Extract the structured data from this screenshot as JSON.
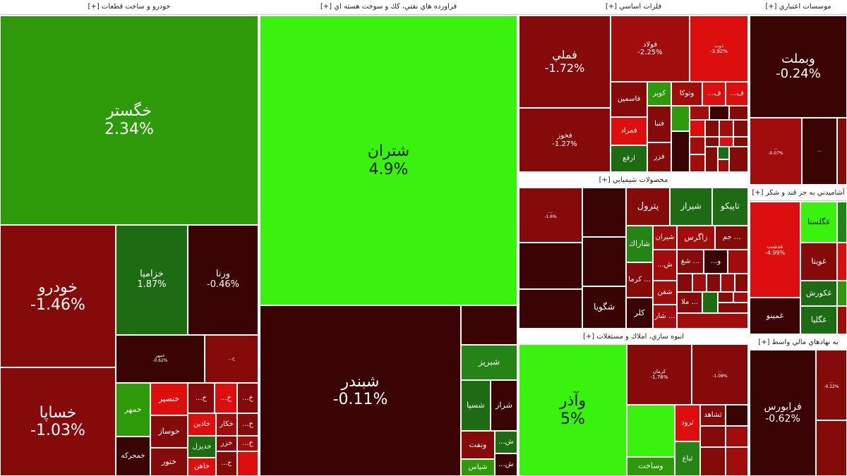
{
  "sectors": {
    "auto": "خودرو و ساخت قطعات [+]",
    "refinery": "فراورده هاي نفتي، كك و سوخت هسته اي [+]",
    "metals": "فلزات اساسي [+]",
    "credit": "موسسات اعتباري [+]",
    "chemical": "محصولات شيميايي [+]",
    "food": "آشاميدني به جز قند و شكر [+]",
    "construction": "انبوه سازي، املاك و مستغلات [+]",
    "financial": "به نهادهاي مالي واسط [+]"
  },
  "colors": {
    "dark_maroon": "#3a0404",
    "dark_red": "#850a0a",
    "red": "#a10c0c",
    "bright_red": "#dd0e0e",
    "green": "#2e9a0a",
    "light_green": "#39f20d",
    "forest_green": "#1d6b13"
  },
  "tiles": {
    "khegostar": {
      "name": "خگستر",
      "pct": "2.34%"
    },
    "khodro": {
      "name": "خودرو",
      "pct": "-1.46%"
    },
    "khsapa": {
      "name": "خساپا",
      "pct": "-1.03%"
    },
    "khzamia": {
      "name": "خزاميا",
      "pct": "1.87%"
    },
    "verna": {
      "name": "ورنا",
      "pct": "-0.46%"
    },
    "kh_small1": {
      "name": "خمهر",
      "pct": "-0.62%"
    },
    "khomehr": {
      "name": "خمهر"
    },
    "khmehrkeh": {
      "name": "خمحركه"
    },
    "khensir": {
      "name": "خنصير"
    },
    "khosaz": {
      "name": "خوساز"
    },
    "khtur": {
      "name": "ختور"
    },
    "khzayan": {
      "name": "خاذين"
    },
    "khdizel": {
      "name": "خديزل"
    },
    "khahn": {
      "name": "خاهن"
    },
    "khkar": {
      "name": "خكار"
    },
    "khzar": {
      "name": "خزر"
    },
    "kh1": {
      "name": "...خ"
    },
    "kh2": {
      "name": "...خ"
    },
    "kh3": {
      "name": "...خ"
    },
    "kh4": {
      "name": "...خ"
    },
    "kh5": {
      "name": "...خ"
    },
    "kh6": {
      "name": "...خ"
    },
    "shetran": {
      "name": "شتران",
      "pct": "4.9%"
    },
    "shebandar": {
      "name": "شبندر",
      "pct": "-0.11%"
    },
    "shebriz": {
      "name": "شبريز"
    },
    "shesepa": {
      "name": "شسپا"
    },
    "sheraz": {
      "name": "شراز"
    },
    "shenaft": {
      "name": "ونفت"
    },
    "shepas": {
      "name": "شپاس"
    },
    "shesh1": {
      "name": "...ش"
    },
    "shesh2": {
      "name": "...ش"
    },
    "fameli": {
      "name": "فملي",
      "pct": "-1.72%"
    },
    "fekhuz": {
      "name": "فخوز",
      "pct": "-1.27%"
    },
    "fulad": {
      "name": "فولاد",
      "pct": "-2.25%"
    },
    "fenavar": {
      "name": "ذوب",
      "pct": "-3.92%"
    },
    "vetuka": {
      "name": "وتوكا"
    },
    "fasmin": {
      "name": "فاسمين"
    },
    "kavir": {
      "name": "كوير"
    },
    "famrad": {
      "name": "فمراد"
    },
    "faneba": {
      "name": "فنبا"
    },
    "arfe": {
      "name": "ارفع"
    },
    "fazer": {
      "name": "فزر"
    },
    "fe1": {
      "name": "...ف"
    },
    "fe2": {
      "name": "...ف"
    },
    "vebmelat": {
      "name": "وبملت",
      "pct": "-0.24%"
    },
    "bank_small1": {
      "name": "...",
      "pct": "-0.07%"
    },
    "bank_small2": {
      "name": "..."
    },
    "pertol": {
      "name": "پترول"
    },
    "shiraz": {
      "name": "شيراز"
    },
    "tapiko": {
      "name": "تاپيكو"
    },
    "sharak": {
      "name": "شاراك"
    },
    "shiran": {
      "name": "شيران"
    },
    "zagros": {
      "name": "زاگرس"
    },
    "jam": {
      "name": "جم ..."
    },
    "shegoya": {
      "name": "شگويا"
    },
    "kermi": {
      "name": "كرما ..."
    },
    "shefan": {
      "name": "شفن"
    },
    "kolar": {
      "name": "كلر"
    },
    "shar": {
      "name": "شار ..."
    },
    "mala": {
      "name": "ملا ..."
    },
    "she1": {
      "name": "...ش"
    },
    "sheh": {
      "name": "شغ ..."
    },
    "shevu": {
      "name": "...و"
    },
    "chem_small1": {
      "name": "...",
      "pct": "-1.6%"
    },
    "ghadesh": {
      "name": "غدشت",
      "pct": "-4.99%"
    },
    "ghgolestan": {
      "name": "غگلستا"
    },
    "ghobita": {
      "name": "غويتا"
    },
    "ghkorsh": {
      "name": "غكورش"
    },
    "ghgolpa": {
      "name": "غگليا"
    },
    "ghminu": {
      "name": "غمينو"
    },
    "vazar": {
      "name": "وآذر",
      "pct": "5%"
    },
    "kerman": {
      "name": "كرمان",
      "pct": "-1.78%"
    },
    "vasakht": {
      "name": "وساخت"
    },
    "terood": {
      "name": "ثرود"
    },
    "teshahed": {
      "name": "ثشاهد"
    },
    "tebagh": {
      "name": "ثباغ"
    },
    "const_small1": {
      "name": "...",
      "pct": "-1.08%"
    },
    "farabours": {
      "name": "فرابورس",
      "pct": "-0.62%"
    },
    "fin_small1": {
      "name": "...",
      "pct": "-0.22%"
    }
  }
}
